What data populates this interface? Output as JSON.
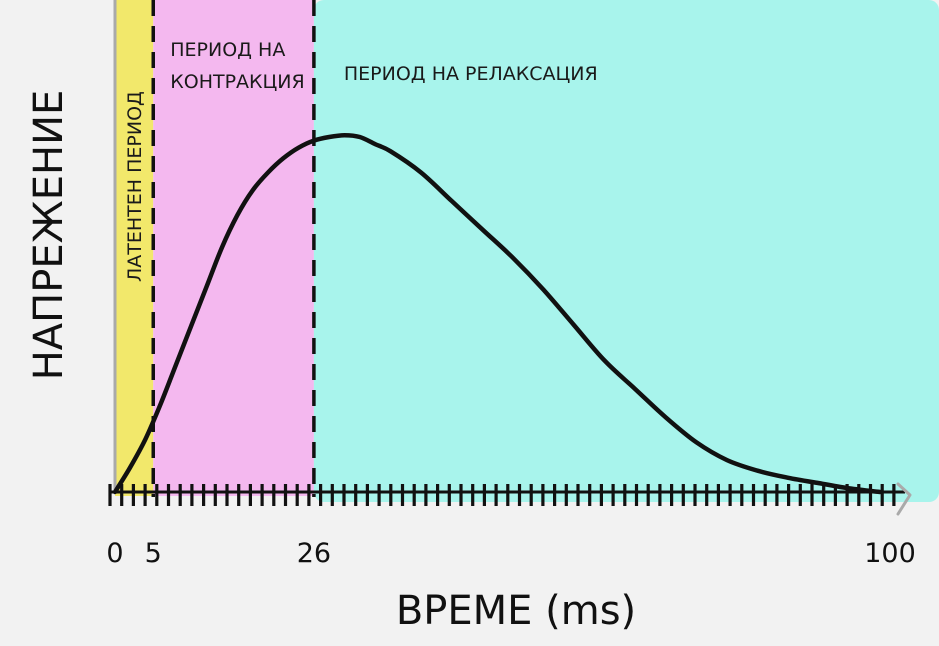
{
  "chart_data": {
    "type": "area",
    "xlabel": "ВРЕМЕ (ms)",
    "ylabel": "НАПРЕЖЕНИЕ",
    "xlim": [
      0,
      100
    ],
    "x_ticks": [
      "0",
      "5",
      "26",
      "100"
    ],
    "regions": [
      {
        "name": "latent",
        "label": "ЛАТЕНТЕН ПЕРИОД",
        "x_start": 0,
        "x_end": 5,
        "color": "#f2e86b"
      },
      {
        "name": "contraction",
        "label_lines": [
          "ПЕРИОД НА",
          "КОНТРАКЦИЯ"
        ],
        "x_start": 5,
        "x_end": 26,
        "color": "#f4b8ef"
      },
      {
        "name": "relaxation",
        "label": "ПЕРИОД НА РЕЛАКСАЦИЯ",
        "x_start": 26,
        "x_end": 100,
        "color": "#a8f4ec"
      }
    ],
    "boundaries": [
      5,
      26
    ],
    "series": [
      {
        "x": [
          0,
          2,
          4,
          6,
          8,
          10,
          12,
          14,
          16,
          18,
          20,
          22,
          24,
          26,
          28,
          30,
          32,
          34,
          36,
          40,
          44,
          48,
          52,
          56,
          60,
          64,
          68,
          72,
          76,
          80,
          84,
          88,
          92,
          96,
          100
        ],
        "y": [
          0,
          0.07,
          0.15,
          0.25,
          0.36,
          0.47,
          0.58,
          0.69,
          0.78,
          0.85,
          0.9,
          0.94,
          0.97,
          0.99,
          1.0,
          1.005,
          1.0,
          0.98,
          0.96,
          0.9,
          0.82,
          0.74,
          0.66,
          0.57,
          0.47,
          0.37,
          0.29,
          0.21,
          0.14,
          0.09,
          0.06,
          0.04,
          0.025,
          0.01,
          0
        ]
      }
    ],
    "grid": false,
    "colors": {
      "curve": "#111111",
      "axis": "#aaaaaa",
      "ticks": "#111111",
      "boundary": "#111111"
    }
  }
}
